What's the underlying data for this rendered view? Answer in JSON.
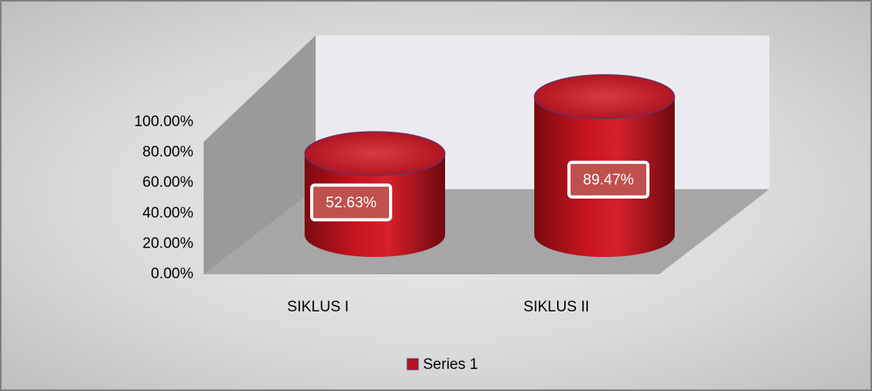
{
  "chart_data": {
    "type": "bar3d",
    "categories": [
      "SIKLUS I",
      "SIKLUS II"
    ],
    "series": [
      {
        "name": "Series 1",
        "color": "#b5121b",
        "values": [
          52.63,
          89.47
        ],
        "value_labels": [
          "52.63%",
          "89.47%"
        ]
      }
    ],
    "ylim": [
      0,
      100
    ],
    "yticks": [
      {
        "value": 0,
        "label": "0.00%"
      },
      {
        "value": 20,
        "label": "20.00%"
      },
      {
        "value": 40,
        "label": "40.00%"
      },
      {
        "value": 60,
        "label": "60.00%"
      },
      {
        "value": 80,
        "label": "80.00%"
      },
      {
        "value": 100,
        "label": "100.00%"
      }
    ],
    "legend": "bottom"
  }
}
